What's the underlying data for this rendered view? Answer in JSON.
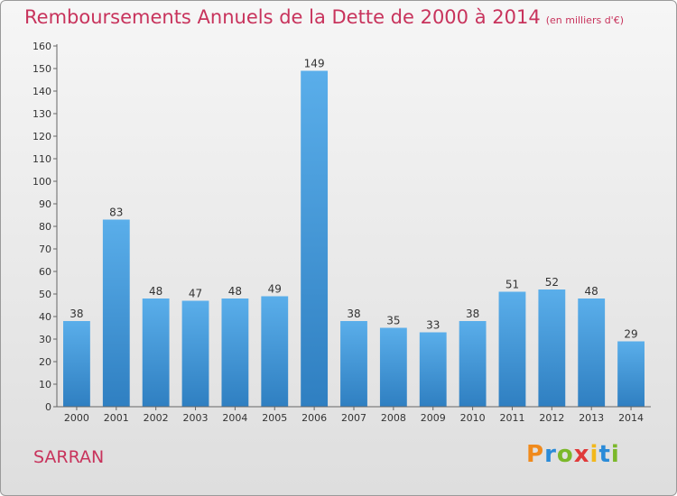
{
  "title": "Remboursements Annuels de la Dette de 2000 à 2014",
  "unit_note": "(en milliers d'€)",
  "commune": "SARRAN",
  "logo": {
    "letters": [
      "P",
      "r",
      "o",
      "x",
      "i",
      "t",
      "i"
    ],
    "colors": [
      "#f08a1c",
      "#2a8bd8",
      "#7bb82a",
      "#e03a3a",
      "#f2b81c",
      "#2a8bd8",
      "#7bb82a"
    ]
  },
  "colors": {
    "bar_top": "#5aaeea",
    "bar_bottom": "#2f7fc1",
    "accent": "#c8335c"
  },
  "chart_data": {
    "type": "bar",
    "categories": [
      "2000",
      "2001",
      "2002",
      "2003",
      "2004",
      "2005",
      "2006",
      "2007",
      "2008",
      "2009",
      "2010",
      "2011",
      "2012",
      "2013",
      "2014"
    ],
    "values": [
      38,
      83,
      48,
      47,
      48,
      49,
      149,
      38,
      35,
      33,
      38,
      51,
      52,
      48,
      29
    ],
    "title": "Remboursements Annuels de la Dette de 2000 à 2014",
    "xlabel": "",
    "ylabel": "",
    "ylim": [
      0,
      160
    ],
    "ytick_step": 10,
    "grid": false,
    "data_labels": true
  }
}
